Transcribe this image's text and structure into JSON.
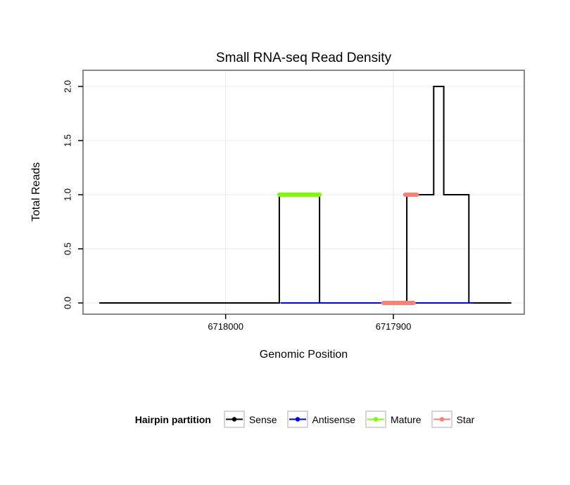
{
  "chart_data": {
    "type": "line",
    "title": "Small RNA-seq Read Density",
    "xlabel": "Genomic Position",
    "ylabel": "Total Reads",
    "grid": true,
    "legend_position": "bottom",
    "x_axis": {
      "reversed": true,
      "lim": [
        6718085,
        6717822
      ],
      "ticks": [
        {
          "value": 6718000,
          "label": "6718000"
        },
        {
          "value": 6717900,
          "label": "6717900"
        }
      ]
    },
    "y_axis": {
      "lim": [
        0,
        2
      ],
      "ticks": [
        {
          "value": 0,
          "label": "0.0"
        },
        {
          "value": 0.5,
          "label": "0.5"
        },
        {
          "value": 1,
          "label": "1.0"
        },
        {
          "value": 1.5,
          "label": "1.5"
        },
        {
          "value": 2,
          "label": "2.0"
        }
      ]
    },
    "legend": {
      "title": "Hairpin partition",
      "entries": [
        {
          "label": "Sense",
          "color": "#000000"
        },
        {
          "label": "Antisense",
          "color": "#0000ff"
        },
        {
          "label": "Mature",
          "color": "#7cfc00"
        },
        {
          "label": "Star",
          "color": "#fa8072"
        }
      ]
    },
    "series": [
      {
        "name": "Sense",
        "color": "#000000",
        "width": 2,
        "segments": [
          [
            [
              6718075,
              0
            ],
            [
              6717968,
              0
            ],
            [
              6717968,
              1
            ],
            [
              6717944,
              1
            ],
            [
              6717944,
              0
            ],
            [
              6717892,
              0
            ],
            [
              6717892,
              1
            ],
            [
              6717876,
              1
            ],
            [
              6717876,
              2
            ],
            [
              6717870,
              2
            ],
            [
              6717870,
              1
            ],
            [
              6717855,
              1
            ],
            [
              6717855,
              0
            ],
            [
              6717830,
              0
            ]
          ]
        ]
      },
      {
        "name": "Antisense",
        "color": "#0000ff",
        "width": 2,
        "segments": [
          [
            [
              6717967,
              0
            ],
            [
              6717853,
              0
            ]
          ]
        ]
      },
      {
        "name": "Mature",
        "color": "#7cfc00",
        "width": 6,
        "segments": [
          [
            [
              6717968,
              1
            ],
            [
              6717944,
              1
            ]
          ]
        ]
      },
      {
        "name": "Star",
        "color": "#fa8072",
        "width": 6,
        "segments": [
          [
            [
              6717893,
              1
            ],
            [
              6717886,
              1
            ]
          ],
          [
            [
              6717906,
              0
            ],
            [
              6717888,
              0
            ]
          ]
        ]
      }
    ],
    "colors": {
      "panel_border": "#898989",
      "gridline": "#e8e8e8",
      "tick": "#000000"
    }
  }
}
